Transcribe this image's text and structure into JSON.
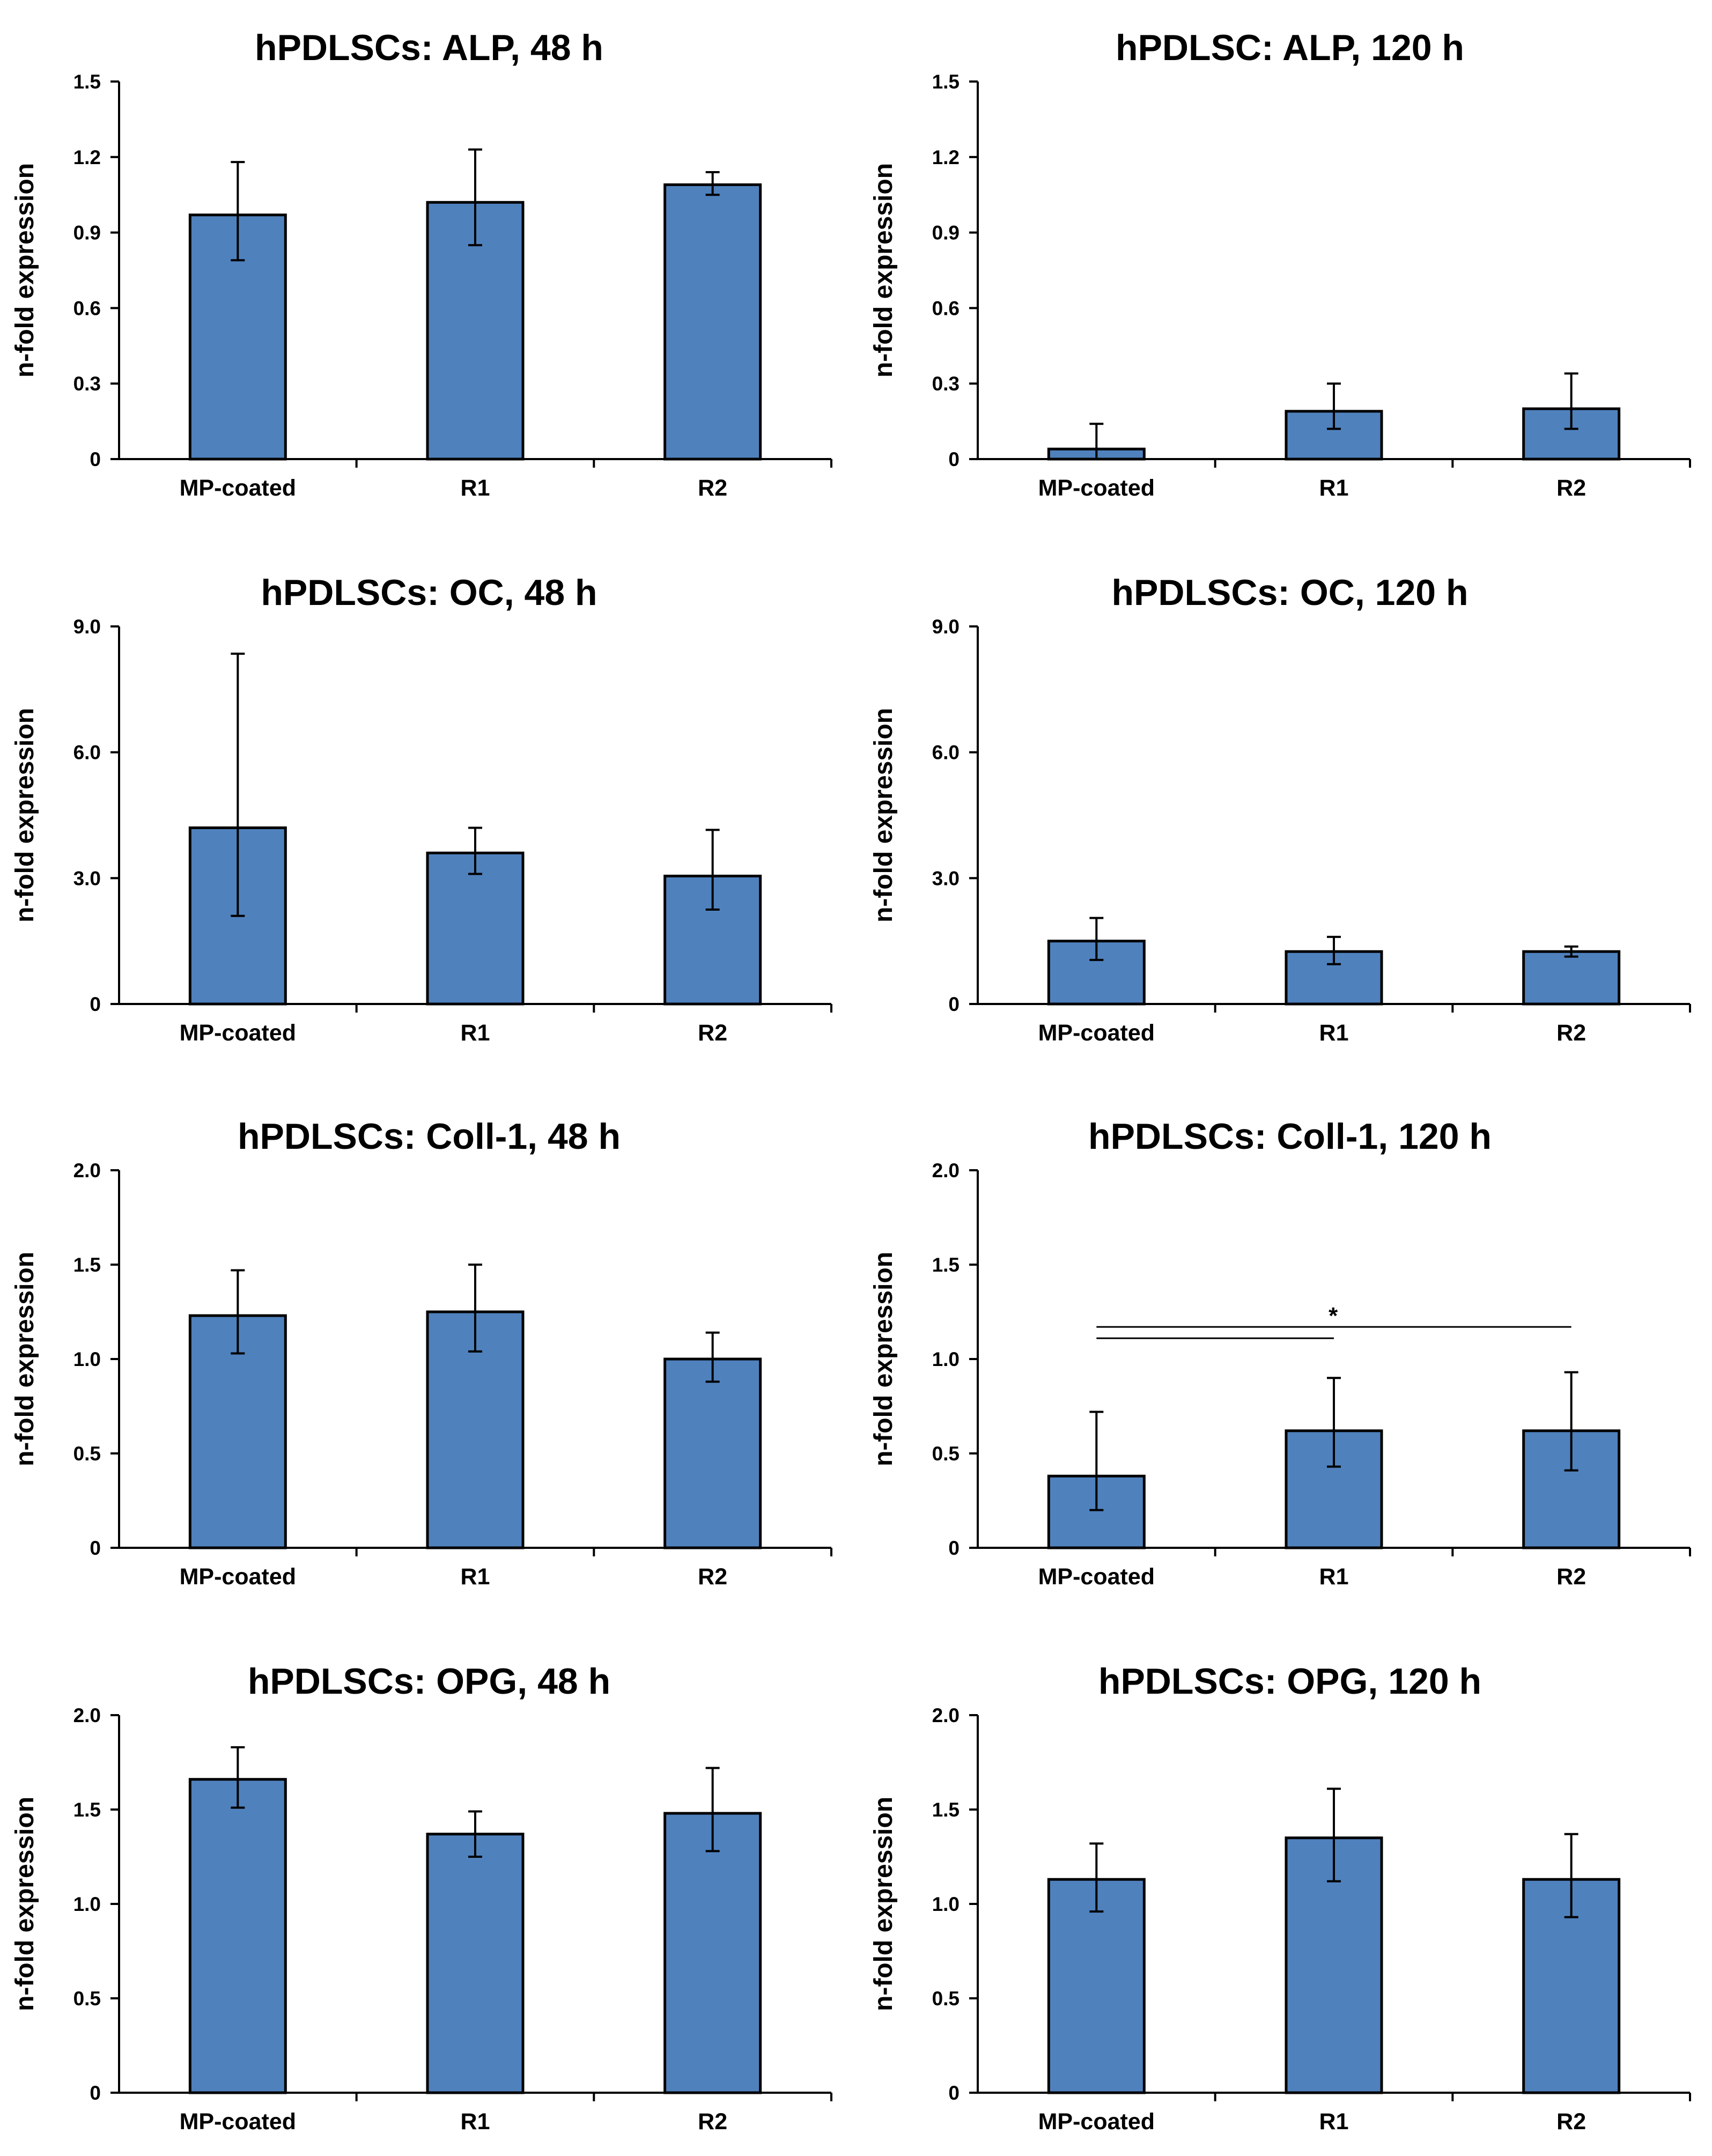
{
  "figure": {
    "bar_color": "#4F81BD",
    "bar_edge_color": "#000000"
  },
  "chart_data": [
    {
      "type": "bar",
      "title": "hPDLSCs: ALP, 48 h",
      "ylabel": "n-fold expression",
      "categories": [
        "MP-coated",
        "R1",
        "R2"
      ],
      "values": [
        0.97,
        1.02,
        1.09
      ],
      "error_low": [
        0.18,
        0.17,
        0.04
      ],
      "error_high": [
        0.21,
        0.21,
        0.05
      ],
      "ylim": [
        0,
        1.5
      ],
      "yticks": [
        0,
        0.3,
        0.6,
        0.9,
        1.2,
        1.5
      ],
      "ytick_labels": [
        "0",
        "0.3",
        "0.6",
        "0.9",
        "1.2",
        "1.5"
      ]
    },
    {
      "type": "bar",
      "title": "hPDLSC: ALP, 120 h",
      "ylabel": "n-fold expression",
      "categories": [
        "MP-coated",
        "R1",
        "R2"
      ],
      "values": [
        0.04,
        0.19,
        0.2
      ],
      "error_low": [
        0.04,
        0.07,
        0.08
      ],
      "error_high": [
        0.1,
        0.11,
        0.14
      ],
      "ylim": [
        0,
        1.5
      ],
      "yticks": [
        0,
        0.3,
        0.6,
        0.9,
        1.2,
        1.5
      ],
      "ytick_labels": [
        "0",
        "0.3",
        "0.6",
        "0.9",
        "1.2",
        "1.5"
      ]
    },
    {
      "type": "bar",
      "title": "hPDLSCs: OC, 48 h",
      "ylabel": "n-fold expression",
      "categories": [
        "MP-coated",
        "R1",
        "R2"
      ],
      "values": [
        4.2,
        3.6,
        3.05
      ],
      "error_low": [
        2.1,
        0.5,
        0.8
      ],
      "error_high": [
        4.15,
        0.6,
        1.1
      ],
      "ylim": [
        0,
        9.0
      ],
      "yticks": [
        0,
        3.0,
        6.0,
        9.0
      ],
      "ytick_labels": [
        "0",
        "3.0",
        "6.0",
        "9.0"
      ]
    },
    {
      "type": "bar",
      "title": "hPDLSCs: OC, 120 h",
      "ylabel": "n-fold expression",
      "categories": [
        "MP-coated",
        "R1",
        "R2"
      ],
      "values": [
        1.5,
        1.25,
        1.25
      ],
      "error_low": [
        0.45,
        0.3,
        0.12
      ],
      "error_high": [
        0.55,
        0.35,
        0.12
      ],
      "ylim": [
        0,
        9.0
      ],
      "yticks": [
        0,
        3.0,
        6.0,
        9.0
      ],
      "ytick_labels": [
        "0",
        "3.0",
        "6.0",
        "9.0"
      ]
    },
    {
      "type": "bar",
      "title": "hPDLSCs: Coll-1, 48 h",
      "ylabel": "n-fold expression",
      "categories": [
        "MP-coated",
        "R1",
        "R2"
      ],
      "values": [
        1.23,
        1.25,
        1.0
      ],
      "error_low": [
        0.2,
        0.21,
        0.12
      ],
      "error_high": [
        0.24,
        0.25,
        0.14
      ],
      "ylim": [
        0,
        2.0
      ],
      "yticks": [
        0,
        0.5,
        1.0,
        1.5,
        2.0
      ],
      "ytick_labels": [
        "0",
        "0.5",
        "1.0",
        "1.5",
        "2.0"
      ]
    },
    {
      "type": "bar",
      "title": "hPDLSCs: Coll-1, 120 h",
      "ylabel": "n-fold expression",
      "categories": [
        "MP-coated",
        "R1",
        "R2"
      ],
      "values": [
        0.38,
        0.62,
        0.62
      ],
      "error_low": [
        0.18,
        0.19,
        0.21
      ],
      "error_high": [
        0.34,
        0.28,
        0.31
      ],
      "ylim": [
        0,
        2.0
      ],
      "yticks": [
        0,
        0.5,
        1.0,
        1.5,
        2.0
      ],
      "ytick_labels": [
        "0",
        "0.5",
        "1.0",
        "1.5",
        "2.0"
      ],
      "significance": {
        "label": "*",
        "brackets": [
          {
            "from": "MP-coated",
            "to": "R1",
            "y": 1.11
          },
          {
            "from": "MP-coated",
            "to": "R2",
            "y": 1.17
          }
        ]
      }
    },
    {
      "type": "bar",
      "title": "hPDLSCs: OPG, 48 h",
      "ylabel": "n-fold expression",
      "categories": [
        "MP-coated",
        "R1",
        "R2"
      ],
      "values": [
        1.66,
        1.37,
        1.48
      ],
      "error_low": [
        0.15,
        0.12,
        0.2
      ],
      "error_high": [
        0.17,
        0.12,
        0.24
      ],
      "ylim": [
        0,
        2.0
      ],
      "yticks": [
        0,
        0.5,
        1.0,
        1.5,
        2.0
      ],
      "ytick_labels": [
        "0",
        "0.5",
        "1.0",
        "1.5",
        "2.0"
      ]
    },
    {
      "type": "bar",
      "title": "hPDLSCs: OPG, 120 h",
      "ylabel": "n-fold expression",
      "categories": [
        "MP-coated",
        "R1",
        "R2"
      ],
      "values": [
        1.13,
        1.35,
        1.13
      ],
      "error_low": [
        0.17,
        0.23,
        0.2
      ],
      "error_high": [
        0.19,
        0.26,
        0.24
      ],
      "ylim": [
        0,
        2.0
      ],
      "yticks": [
        0,
        0.5,
        1.0,
        1.5,
        2.0
      ],
      "ytick_labels": [
        "0",
        "0.5",
        "1.0",
        "1.5",
        "2.0"
      ]
    }
  ]
}
